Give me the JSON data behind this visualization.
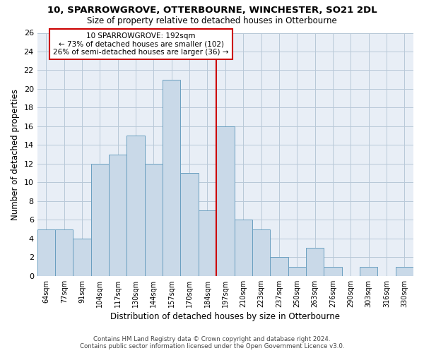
{
  "title1": "10, SPARROWGROVE, OTTERBOURNE, WINCHESTER, SO21 2DL",
  "title2": "Size of property relative to detached houses in Otterbourne",
  "xlabel": "Distribution of detached houses by size in Otterbourne",
  "ylabel": "Number of detached properties",
  "bins": [
    "64sqm",
    "77sqm",
    "91sqm",
    "104sqm",
    "117sqm",
    "130sqm",
    "144sqm",
    "157sqm",
    "170sqm",
    "184sqm",
    "197sqm",
    "210sqm",
    "223sqm",
    "237sqm",
    "250sqm",
    "263sqm",
    "276sqm",
    "290sqm",
    "303sqm",
    "316sqm",
    "330sqm"
  ],
  "values": [
    5,
    5,
    4,
    12,
    13,
    15,
    12,
    21,
    11,
    7,
    16,
    6,
    5,
    2,
    1,
    3,
    1,
    0,
    1,
    0,
    1
  ],
  "bar_color": "#c9d9e8",
  "bar_edge_color": "#6a9fc0",
  "bar_edge_width": 0.7,
  "grid_color": "#b8c8d8",
  "background_color": "#e8eef6",
  "property_line_color": "#cc0000",
  "annotation_text_line1": "10 SPARROWGROVE: 192sqm",
  "annotation_text_line2": "← 73% of detached houses are smaller (102)",
  "annotation_text_line3": "26% of semi-detached houses are larger (36) →",
  "annotation_box_color": "#ffffff",
  "annotation_box_edge": "#cc0000",
  "ylim": [
    0,
    26
  ],
  "yticks": [
    0,
    2,
    4,
    6,
    8,
    10,
    12,
    14,
    16,
    18,
    20,
    22,
    24,
    26
  ],
  "footer1": "Contains HM Land Registry data © Crown copyright and database right 2024.",
  "footer2": "Contains public sector information licensed under the Open Government Licence v3.0."
}
